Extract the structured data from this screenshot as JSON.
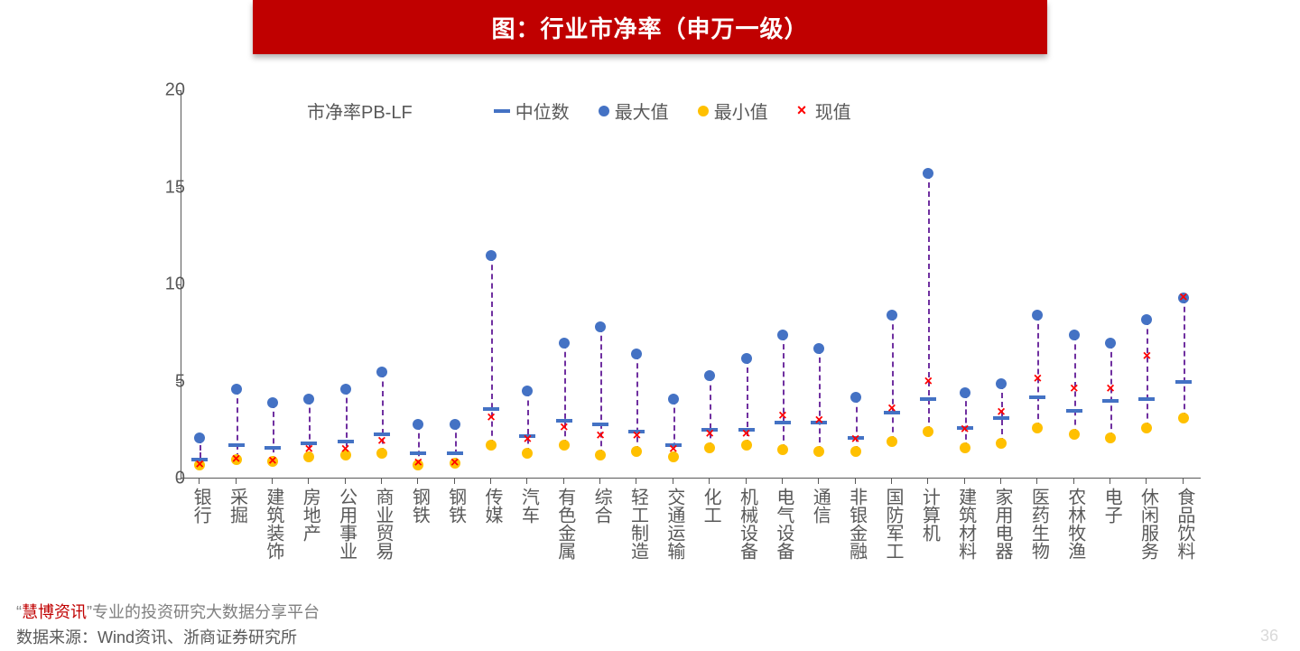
{
  "title": "图：行业市净率（申万一级）",
  "chart": {
    "type": "range-marker",
    "y_label": "市净率PB-LF",
    "ylim": [
      0,
      20
    ],
    "ytick_step": 5,
    "yticks": [
      0,
      5,
      10,
      15,
      20
    ],
    "axis_color": "#595959",
    "tick_fontsize": 20,
    "label_fontsize": 20,
    "background": "#ffffff",
    "stem_color": "#7030a0",
    "legend": {
      "median": {
        "label": "中位数",
        "color": "#4472c4",
        "marker": "dash"
      },
      "max": {
        "label": "最大值",
        "color": "#4472c4",
        "marker": "circle"
      },
      "min": {
        "label": "最小值",
        "color": "#ffc000",
        "marker": "circle"
      },
      "now": {
        "label": "现值",
        "color": "#ff0000",
        "marker": "x"
      }
    },
    "categories": [
      "银行",
      "采掘",
      "建筑装饰",
      "房地产",
      "公用事业",
      "商业贸易",
      "钢铁",
      "钢铁",
      "传媒",
      "汽车",
      "有色金属",
      "综合",
      "轻工制造",
      "交通运输",
      "化工",
      "机械设备",
      "电气设备",
      "通信",
      "非银金融",
      "国防军工",
      "计算机",
      "建筑材料",
      "家用电器",
      "医药生物",
      "农林牧渔",
      "电子",
      "休闲服务",
      "食品饮料"
    ],
    "series": {
      "median": [
        1.0,
        1.7,
        1.6,
        1.8,
        1.9,
        2.3,
        1.3,
        1.3,
        3.6,
        2.2,
        3.0,
        2.8,
        2.4,
        1.7,
        2.5,
        2.5,
        2.9,
        2.9,
        2.1,
        3.4,
        4.1,
        2.6,
        3.1,
        4.2,
        3.5,
        4.0,
        4.1,
        5.0
      ],
      "max": [
        2.1,
        4.6,
        3.9,
        4.1,
        4.6,
        5.5,
        2.8,
        2.8,
        11.5,
        4.5,
        7.0,
        7.8,
        6.4,
        4.1,
        5.3,
        6.2,
        7.4,
        6.7,
        4.2,
        8.4,
        15.7,
        4.4,
        4.9,
        8.4,
        7.4,
        7.0,
        8.2,
        9.3
      ],
      "min": [
        0.7,
        1.0,
        0.9,
        1.1,
        1.2,
        1.3,
        0.7,
        0.8,
        1.7,
        1.3,
        1.7,
        1.2,
        1.4,
        1.1,
        1.6,
        1.7,
        1.5,
        1.4,
        1.4,
        1.9,
        2.4,
        1.6,
        1.8,
        2.6,
        2.3,
        2.1,
        2.6,
        3.1
      ],
      "now": [
        0.7,
        1.0,
        0.9,
        1.5,
        1.5,
        1.9,
        0.8,
        0.8,
        3.1,
        2.0,
        2.6,
        2.2,
        2.2,
        1.5,
        2.3,
        2.3,
        3.2,
        3.0,
        2.0,
        3.6,
        5.0,
        2.5,
        3.4,
        5.1,
        4.6,
        4.6,
        6.3,
        9.3
      ]
    }
  },
  "footer": {
    "watermark_prefix": "“",
    "watermark_hl": "慧博资讯",
    "watermark_suffix": "”专业的投资研究大数据分享平台",
    "source": "数据来源：Wind资讯、浙商证券研究所",
    "page": "36"
  }
}
